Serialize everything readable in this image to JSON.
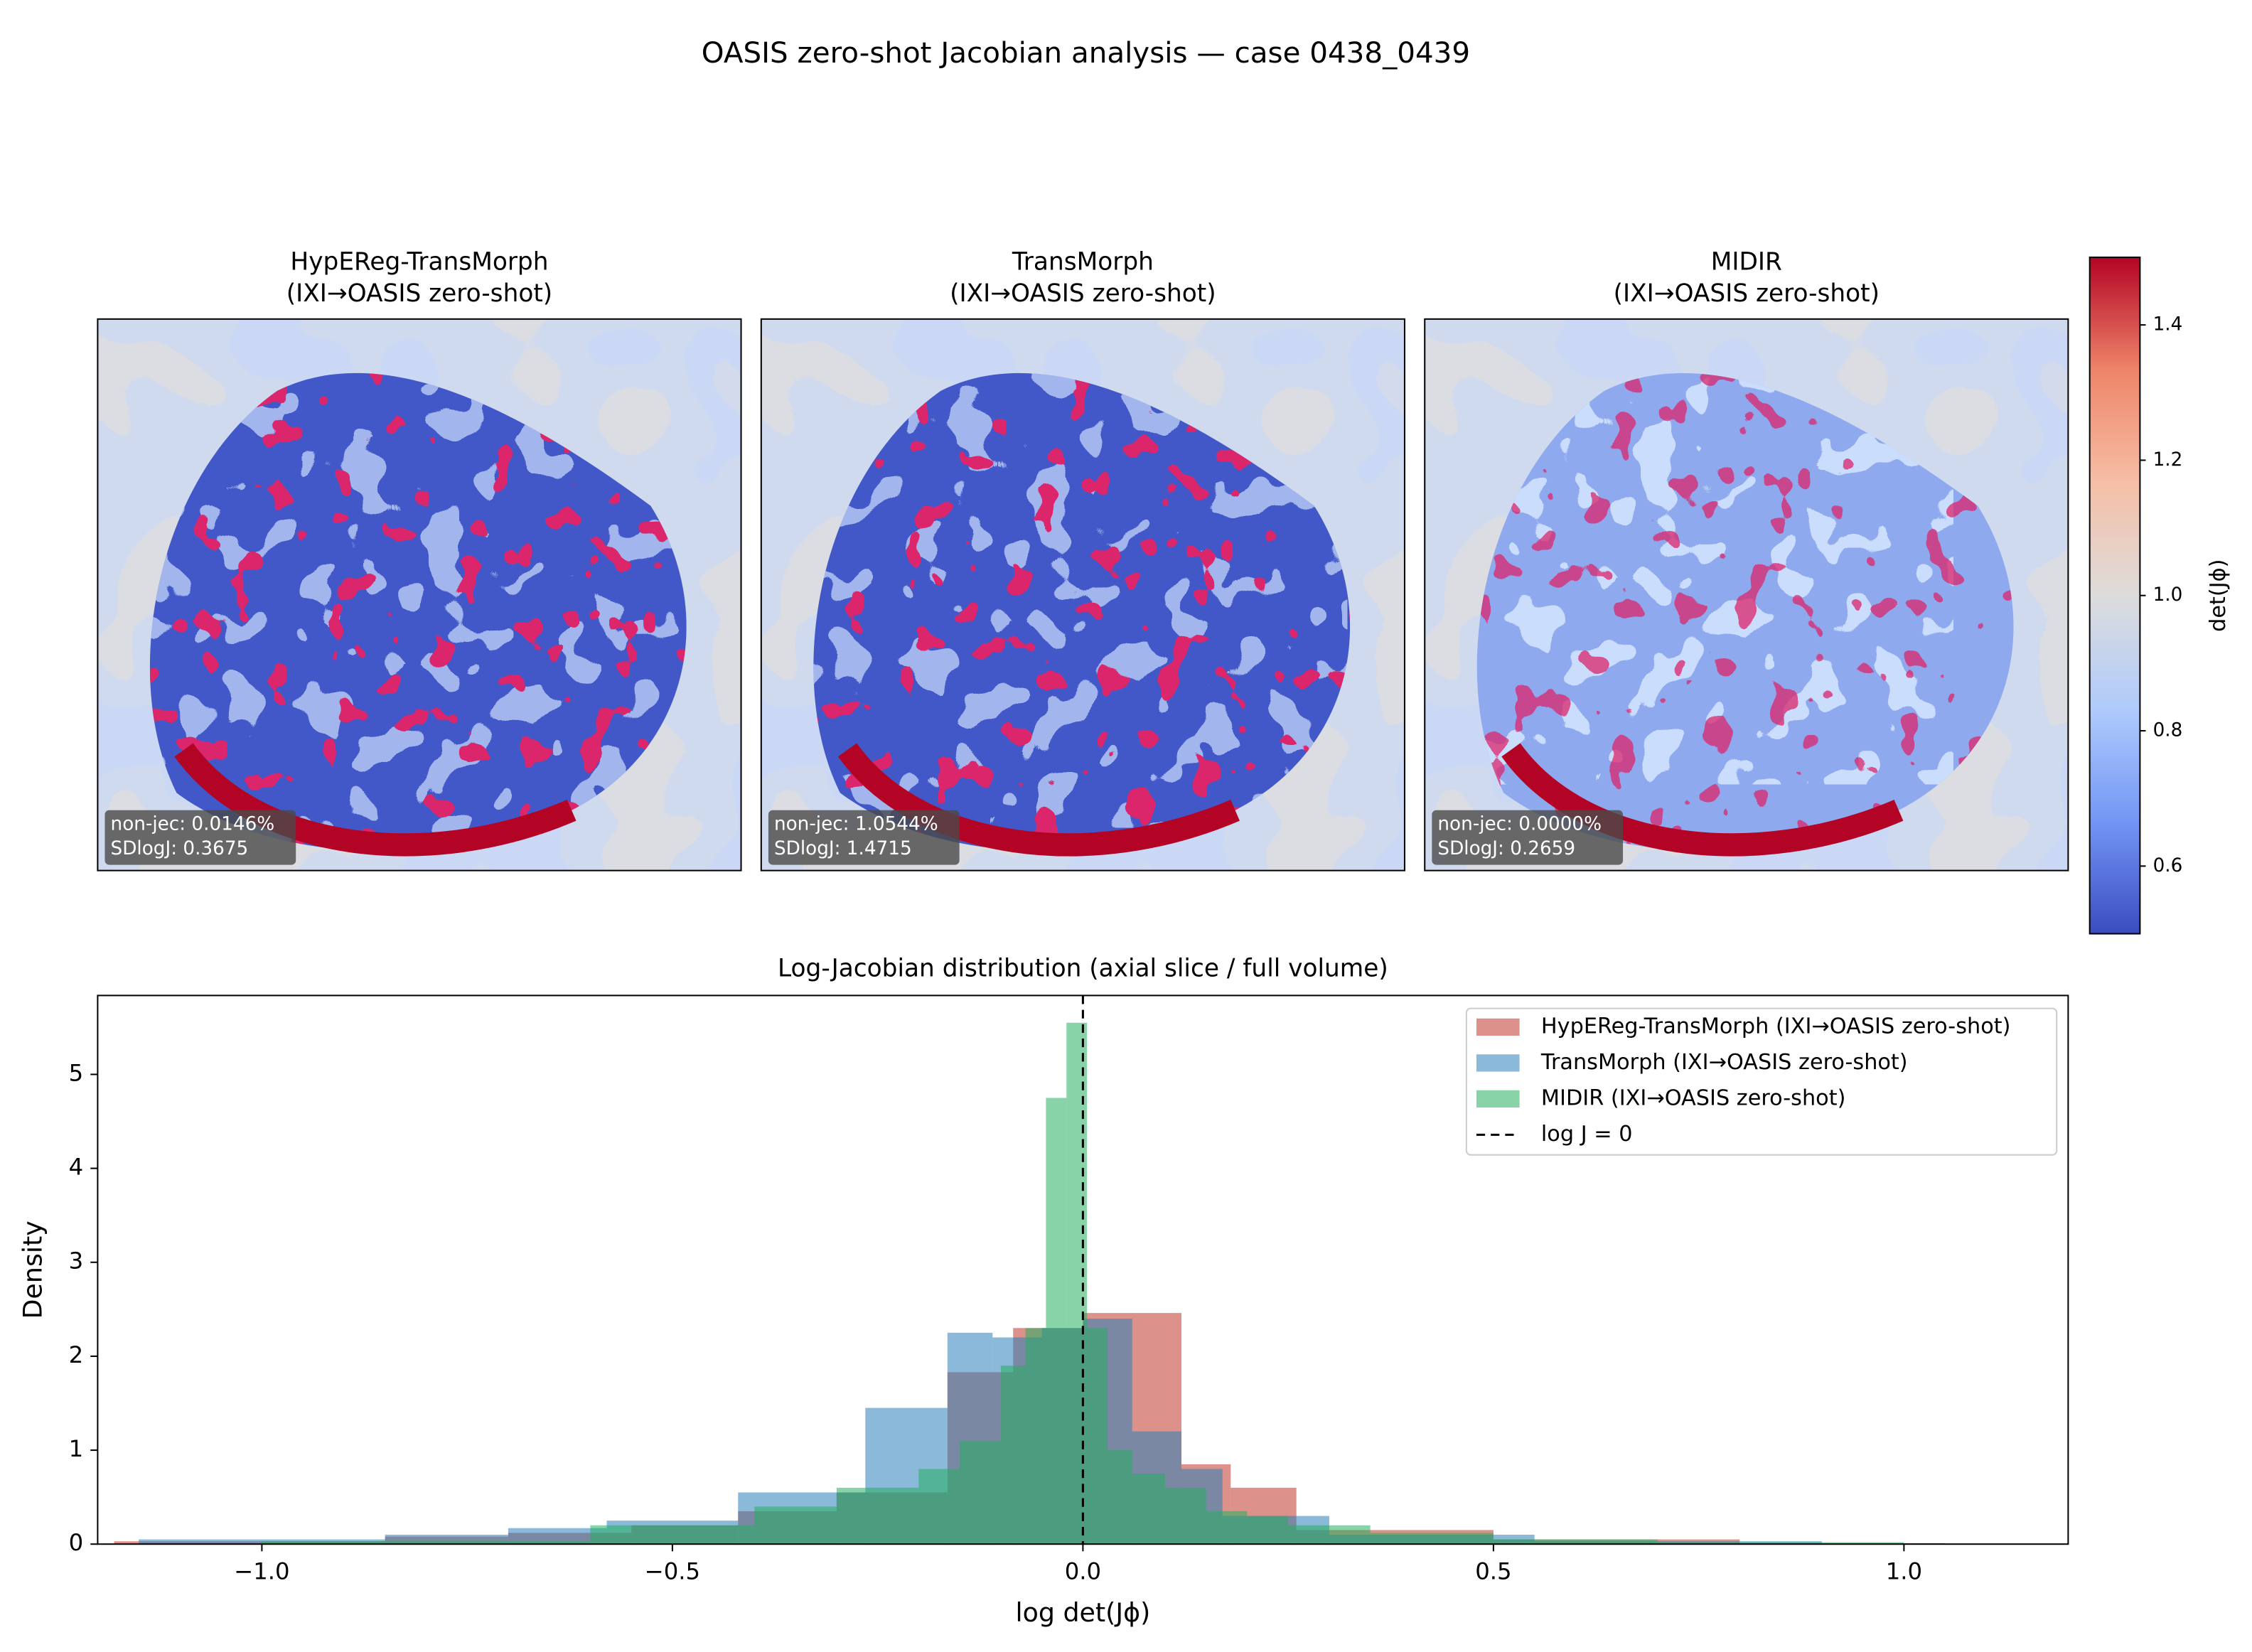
{
  "title": "OASIS zero-shot Jacobian analysis — case 0438_0439",
  "chart_data": [
    {
      "type": "heatmap",
      "panels": [
        {
          "title": [
            "HypEReg-TransMorph",
            "(IXI→OASIS zero-shot)"
          ],
          "annotation": [
            "non-jec: 0.0146%",
            "SDlogJ: 0.3675"
          ]
        },
        {
          "title": [
            "TransMorph",
            "(IXI→OASIS zero-shot)"
          ],
          "annotation": [
            "non-jec: 1.0544%",
            "SDlogJ: 1.4715"
          ]
        },
        {
          "title": [
            "MIDIR",
            "(IXI→OASIS zero-shot)"
          ],
          "annotation": [
            "non-jec: 0.0000%",
            "SDlogJ: 0.2659"
          ]
        }
      ],
      "colorbar": {
        "label": "det(Jϕ)",
        "lim": [
          0.5,
          1.5
        ],
        "ticks": [
          0.6,
          0.8,
          {
            "value": 1,
            "label": "1.0"
          },
          1.2,
          1.4
        ],
        "colors": [
          "#3b4cc0",
          "#7396f5",
          "#b0cbfc",
          "#dddcdc",
          "#f6bfa6",
          "#ee8468",
          "#b40426"
        ]
      }
    },
    {
      "type": "histogram",
      "title": "Log-Jacobian distribution (axial slice / full volume)",
      "xlabel": "log det(Jϕ)",
      "ylabel": "Density",
      "xlim": [
        -1.2,
        1.2
      ],
      "ylim": [
        0,
        5.84
      ],
      "xticks": [
        {
          "value": -1,
          "label": "−1.0"
        },
        {
          "value": -0.5,
          "label": "−0.5"
        },
        {
          "value": 0,
          "label": "0.0"
        },
        0.5,
        {
          "value": 1,
          "label": "1.0"
        }
      ],
      "yticks": [
        0,
        1,
        2,
        3,
        4,
        5
      ],
      "alpha": 0.55,
      "legend": "upper right",
      "series": [
        {
          "name": "HypEReg-TransMorph (IXI→OASIS zero-shot)",
          "color": "#c0392b",
          "bins": [
            -1.18,
            -0.85,
            -0.7,
            -0.55,
            -0.42,
            -0.3,
            -0.165,
            -0.085,
            0.0,
            0.12,
            0.18,
            0.26,
            0.5,
            0.8,
            1.05
          ],
          "values": [
            0.03,
            0.08,
            0.12,
            0.2,
            0.35,
            0.55,
            1.83,
            2.3,
            2.46,
            0.85,
            0.6,
            0.15,
            0.05,
            0.01
          ]
        },
        {
          "name": "TransMorph (IXI→OASIS zero-shot)",
          "color": "#2980b9",
          "bins": [
            -1.15,
            -0.85,
            -0.7,
            -0.58,
            -0.42,
            -0.265,
            -0.165,
            -0.11,
            -0.05,
            0.0,
            0.06,
            0.12,
            0.17,
            0.3,
            0.55,
            0.9
          ],
          "values": [
            0.05,
            0.1,
            0.17,
            0.25,
            0.55,
            1.45,
            2.25,
            2.2,
            2.3,
            2.4,
            1.2,
            0.8,
            0.3,
            0.1,
            0.03
          ]
        },
        {
          "name": "MIDIR (IXI→OASIS zero-shot)",
          "color": "#27ae60",
          "bins": [
            -1.0,
            -0.6,
            -0.4,
            -0.3,
            -0.2,
            -0.15,
            -0.1,
            -0.07,
            -0.045,
            -0.02,
            0.005,
            0.03,
            0.06,
            0.1,
            0.15,
            0.2,
            0.25,
            0.35,
            0.5,
            0.7,
            1.0
          ],
          "values": [
            0.03,
            0.2,
            0.4,
            0.6,
            0.8,
            1.1,
            1.9,
            2.3,
            4.75,
            5.55,
            2.3,
            1.0,
            0.75,
            0.6,
            0.35,
            0.3,
            0.2,
            0.12,
            0.05,
            0.02
          ]
        }
      ],
      "vline": {
        "x": 0,
        "label": "log J = 0"
      }
    }
  ]
}
